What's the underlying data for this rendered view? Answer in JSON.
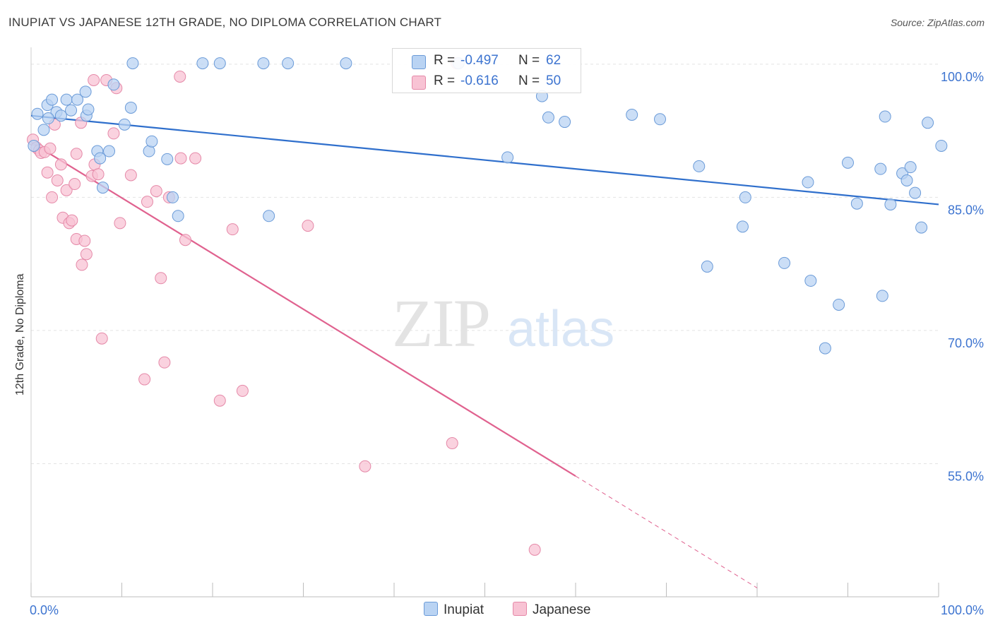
{
  "title": "INUPIAT VS JAPANESE 12TH GRADE, NO DIPLOMA CORRELATION CHART",
  "source": "Source: ZipAtlas.com",
  "watermark": {
    "zip": "ZIP",
    "atlas": "atlas"
  },
  "legend": {
    "inupiat": {
      "r_label": "R =",
      "r_value": "-0.497",
      "n_label": "N =",
      "n_value": "62"
    },
    "japanese": {
      "r_label": "R =",
      "r_value": "-0.616",
      "n_label": "N =",
      "n_value": "50"
    }
  },
  "colors": {
    "inupiat_fill": "#b9d3f3",
    "inupiat_stroke": "#6b9bd8",
    "inupiat_line": "#2f6fcc",
    "japanese_fill": "#f8c3d4",
    "japanese_stroke": "#e589a8",
    "japanese_line": "#e0628f",
    "tick_label": "#3d74d0",
    "grid": "#e4e4e4"
  },
  "chart_data": {
    "type": "scatter",
    "title": "INUPIAT VS JAPANESE 12TH GRADE, NO DIPLOMA CORRELATION CHART",
    "xlabel": "",
    "ylabel": "12th Grade, No Diploma",
    "xlim": [
      0,
      100
    ],
    "ylim": [
      40,
      101.5
    ],
    "x_tick_labels": [
      {
        "value": 0,
        "label": "0.0%"
      },
      {
        "value": 100,
        "label": "100.0%"
      }
    ],
    "y_tick_labels": [
      {
        "value": 100,
        "label": "100.0%"
      },
      {
        "value": 85,
        "label": "85.0%"
      },
      {
        "value": 70,
        "label": "70.0%"
      },
      {
        "value": 55,
        "label": "55.0%"
      }
    ],
    "series": [
      {
        "name": "Inupiat",
        "trend": {
          "x": [
            0,
            100
          ],
          "y": [
            94.2,
            84.2
          ]
        },
        "points": [
          [
            0.3,
            90.8
          ],
          [
            0.7,
            94.4
          ],
          [
            1.4,
            92.6
          ],
          [
            1.8,
            95.4
          ],
          [
            2.3,
            96.0
          ],
          [
            2.8,
            94.6
          ],
          [
            3.3,
            94.2
          ],
          [
            3.9,
            96.0
          ],
          [
            4.4,
            94.8
          ],
          [
            5.1,
            96.0
          ],
          [
            6.0,
            96.9
          ],
          [
            6.1,
            94.2
          ],
          [
            6.3,
            94.9
          ],
          [
            7.3,
            90.2
          ],
          [
            7.6,
            89.4
          ],
          [
            7.9,
            86.1
          ],
          [
            8.6,
            90.2
          ],
          [
            9.1,
            97.7
          ],
          [
            10.3,
            93.2
          ],
          [
            11.0,
            95.1
          ],
          [
            11.2,
            100.1
          ],
          [
            13.0,
            90.2
          ],
          [
            13.3,
            91.3
          ],
          [
            15.0,
            89.3
          ],
          [
            15.6,
            85.0
          ],
          [
            16.2,
            82.9
          ],
          [
            18.9,
            100.1
          ],
          [
            20.8,
            100.1
          ],
          [
            25.6,
            100.1
          ],
          [
            26.2,
            82.9
          ],
          [
            28.3,
            100.1
          ],
          [
            34.7,
            100.1
          ],
          [
            47.1,
            100.1
          ],
          [
            52.5,
            89.5
          ],
          [
            56.3,
            96.4
          ],
          [
            57.0,
            94.0
          ],
          [
            58.8,
            93.5
          ],
          [
            66.2,
            94.3
          ],
          [
            69.3,
            93.8
          ],
          [
            73.6,
            88.5
          ],
          [
            74.5,
            77.2
          ],
          [
            78.4,
            81.7
          ],
          [
            78.7,
            85.0
          ],
          [
            83.0,
            77.6
          ],
          [
            85.6,
            86.7
          ],
          [
            85.9,
            75.6
          ],
          [
            89.0,
            72.9
          ],
          [
            90.0,
            88.9
          ],
          [
            91.0,
            84.3
          ],
          [
            93.6,
            88.2
          ],
          [
            93.8,
            73.9
          ],
          [
            94.1,
            94.1
          ],
          [
            94.7,
            84.2
          ],
          [
            96.0,
            87.7
          ],
          [
            96.5,
            86.9
          ],
          [
            96.9,
            88.4
          ],
          [
            97.4,
            85.5
          ],
          [
            98.1,
            81.6
          ],
          [
            98.8,
            93.4
          ],
          [
            100.3,
            90.8
          ],
          [
            87.5,
            68.0
          ],
          [
            1.9,
            93.9
          ]
        ]
      },
      {
        "name": "Japanese",
        "trend": {
          "x": [
            0,
            60
          ],
          "y": [
            91.2,
            53.6
          ]
        },
        "trend_dashed": {
          "x": [
            60,
            80
          ],
          "y": [
            53.6,
            41.0
          ]
        },
        "points": [
          [
            0.2,
            91.5
          ],
          [
            0.6,
            90.6
          ],
          [
            0.9,
            90.3
          ],
          [
            1.1,
            90.0
          ],
          [
            1.5,
            90.1
          ],
          [
            1.8,
            87.8
          ],
          [
            2.3,
            85.0
          ],
          [
            2.6,
            93.2
          ],
          [
            2.9,
            86.9
          ],
          [
            3.3,
            88.7
          ],
          [
            3.5,
            82.7
          ],
          [
            3.9,
            85.8
          ],
          [
            4.2,
            82.1
          ],
          [
            4.5,
            82.4
          ],
          [
            4.8,
            86.5
          ],
          [
            5.0,
            80.3
          ],
          [
            5.5,
            93.4
          ],
          [
            5.6,
            77.4
          ],
          [
            5.9,
            80.1
          ],
          [
            6.1,
            78.6
          ],
          [
            6.7,
            87.4
          ],
          [
            6.9,
            98.2
          ],
          [
            7.0,
            88.7
          ],
          [
            7.4,
            87.6
          ],
          [
            7.8,
            69.1
          ],
          [
            8.3,
            98.2
          ],
          [
            9.1,
            92.2
          ],
          [
            9.4,
            97.3
          ],
          [
            9.8,
            82.1
          ],
          [
            11.0,
            87.5
          ],
          [
            12.5,
            64.5
          ],
          [
            12.8,
            84.5
          ],
          [
            13.8,
            85.7
          ],
          [
            14.3,
            75.9
          ],
          [
            14.7,
            66.4
          ],
          [
            15.2,
            85.0
          ],
          [
            16.4,
            98.6
          ],
          [
            17.0,
            80.2
          ],
          [
            18.1,
            89.4
          ],
          [
            20.8,
            62.1
          ],
          [
            22.2,
            81.4
          ],
          [
            23.3,
            63.2
          ],
          [
            30.5,
            81.8
          ],
          [
            36.8,
            54.7
          ],
          [
            46.9,
            100.1
          ],
          [
            46.4,
            57.3
          ],
          [
            55.5,
            45.3
          ],
          [
            16.5,
            89.4
          ],
          [
            5.0,
            89.9
          ],
          [
            2.1,
            90.5
          ]
        ]
      }
    ]
  }
}
